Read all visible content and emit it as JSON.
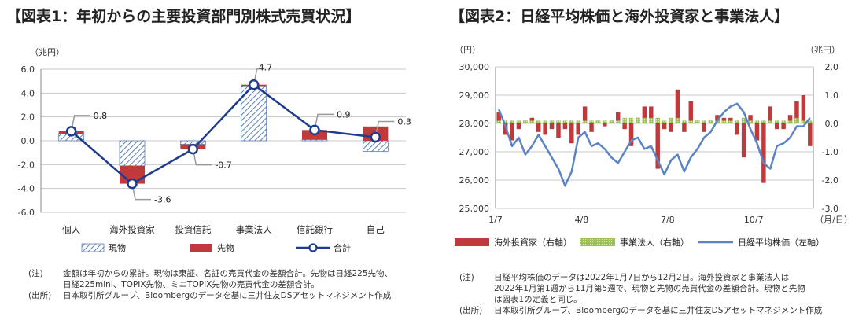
{
  "chart_data": [
    {
      "type": "bar+line",
      "title": "【図表1：年初からの主要投資部門別株式売買状況】",
      "unit_label": "（兆円）",
      "categories": [
        "個人",
        "海外投資家",
        "投資信託",
        "事業法人",
        "信託銀行",
        "自己"
      ],
      "ylim": [
        -6.0,
        6.0
      ],
      "yticks": [
        6.0,
        4.0,
        2.0,
        0.0,
        -2.0,
        -4.0,
        -6.0
      ],
      "series": [
        {
          "name": "現物",
          "type": "bar-stacked",
          "color": "#5b7fb5",
          "pattern": "hatch",
          "values": [
            0.6,
            -2.1,
            -0.3,
            4.6,
            0.1,
            -0.9
          ]
        },
        {
          "name": "先物",
          "type": "bar-stacked",
          "color": "#c0393b",
          "values": [
            0.2,
            -1.5,
            -0.4,
            0.1,
            0.8,
            1.2
          ]
        },
        {
          "name": "合計",
          "type": "line",
          "color": "#1f3c8c",
          "values": [
            0.8,
            -3.6,
            -0.7,
            4.7,
            0.9,
            0.3
          ]
        }
      ],
      "data_labels": [
        "0.8",
        "-3.6",
        "-0.7",
        "4.7",
        "0.9",
        "0.3"
      ],
      "grid": true,
      "legend_position": "bottom",
      "notes": [
        {
          "tag": "(注)",
          "lines": [
            "金額は年初からの累計。現物は東証、名証の売買代金の差額合計。先物は日経225先物、",
            "日経225mini、TOPIX先物、ミニTOPIX先物の売買代金の差額合計。"
          ]
        },
        {
          "tag": "(出所)",
          "lines": [
            "日本取引所グループ、Bloombergのデータを基に三井住友DSアセットマネジメント作成"
          ]
        }
      ]
    },
    {
      "type": "bar+line",
      "title": "【図表2：日経平均株価と海外投資家と事業法人】",
      "left_unit": "（円）",
      "right_unit": "（兆円）",
      "x_tick_labels": [
        "1/7",
        "4/8",
        "7/8",
        "10/7"
      ],
      "x_unit": "（月/日）",
      "left_ylim": [
        25000,
        30000
      ],
      "left_yticks": [
        "30,000",
        "29,000",
        "28,000",
        "27,000",
        "26,000",
        "25,000"
      ],
      "right_ylim": [
        -3.0,
        2.0
      ],
      "right_yticks": [
        "2.0",
        "1.0",
        "0.0",
        "-1.0",
        "-2.0",
        "-3.0"
      ],
      "weeks": 48,
      "series": [
        {
          "name": "海外投資家（右軸）",
          "type": "bar",
          "axis": "right",
          "color": "#c0393b",
          "values": [
            0.4,
            -0.4,
            -0.6,
            -0.2,
            0.1,
            0.2,
            -0.3,
            -0.4,
            -0.2,
            -0.5,
            -0.2,
            -0.7,
            -0.4,
            0.6,
            -0.3,
            0.1,
            -0.1,
            0.1,
            0.4,
            -0.2,
            -0.8,
            0.2,
            0.6,
            0.6,
            -1.6,
            -0.2,
            -0.3,
            1.2,
            -0.3,
            0.8,
            0.1,
            -0.3,
            0.1,
            0.3,
            0.2,
            0.2,
            -0.4,
            -1.2,
            0.3,
            -0.6,
            -2.1,
            0.6,
            -0.2,
            -0.2,
            0.3,
            0.8,
            1.0,
            -0.8
          ]
        },
        {
          "name": "事業法人（右軸）",
          "type": "bar",
          "axis": "right",
          "color": "#9bbf58",
          "pattern": "dots",
          "values": [
            0.1,
            0.1,
            0.1,
            0.1,
            0.1,
            0.1,
            0.1,
            0.1,
            0.1,
            0.1,
            0.1,
            0.1,
            0.1,
            0.1,
            0.1,
            0.1,
            0.1,
            0.1,
            0.1,
            0.2,
            0.2,
            0.2,
            0.2,
            0.2,
            0.2,
            0.1,
            0.2,
            0.2,
            0.1,
            0.1,
            0.1,
            0.1,
            0.1,
            0.1,
            0.1,
            0.1,
            0.1,
            0.2,
            0.1,
            0.1,
            0.1,
            0.1,
            0.1,
            0.1,
            0.1,
            0.2,
            0.1,
            0.1
          ]
        },
        {
          "name": "日経平均株価（左軸）",
          "type": "line",
          "axis": "left",
          "color": "#5b84c4",
          "values": [
            28500,
            27900,
            27200,
            27500,
            26900,
            27200,
            27600,
            27200,
            26800,
            26400,
            25800,
            26300,
            27500,
            27700,
            27200,
            27300,
            27100,
            26800,
            26600,
            27000,
            27400,
            27500,
            27100,
            27200,
            26700,
            26200,
            26700,
            26900,
            26300,
            26800,
            27100,
            27500,
            27700,
            28100,
            28400,
            28600,
            28700,
            28400,
            27800,
            27300,
            26600,
            26400,
            27200,
            27300,
            27500,
            27900,
            27900,
            28200
          ]
        }
      ],
      "legend_position": "bottom",
      "notes": [
        {
          "tag": "(注)",
          "lines": [
            "日経平均株価のデータは2022年1月7日から12月2日。海外投資家と事業法人は",
            "2022年1月第1週から11月第5週で、現物と先物の売買代金の差額合計。現物と先物",
            "は図表1の定義と同じ。"
          ]
        },
        {
          "tag": "(出所)",
          "lines": [
            "日本取引所グループ、Bloombergのデータを基に三井住友DSアセットマネジメント作成"
          ]
        }
      ]
    }
  ]
}
